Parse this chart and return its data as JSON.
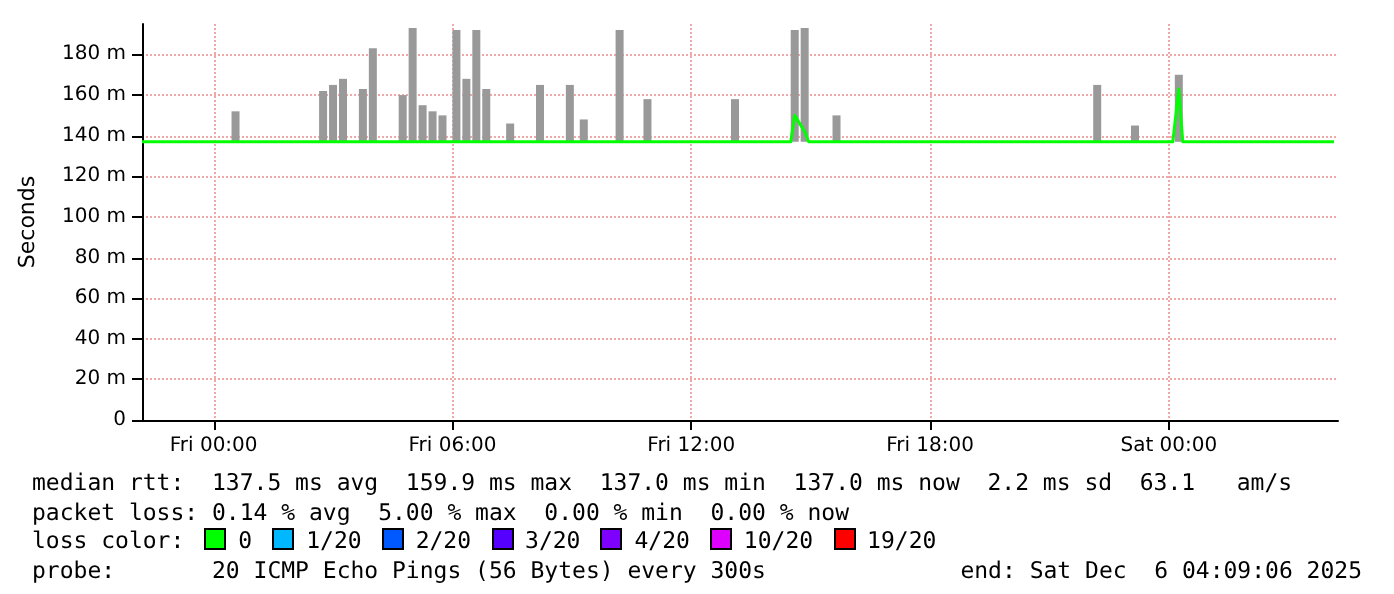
{
  "chart_data": {
    "type": "line",
    "ylabel": "Seconds",
    "xlim": [
      "2025-12-04T22:12",
      "2025-12-06T04:15"
    ],
    "xticks": [
      {
        "value": "2025-12-05T00:00",
        "label": "Fri 00:00"
      },
      {
        "value": "2025-12-05T06:00",
        "label": "Fri 06:00"
      },
      {
        "value": "2025-12-05T12:00",
        "label": "Fri 12:00"
      },
      {
        "value": "2025-12-05T18:00",
        "label": "Fri 18:00"
      },
      {
        "value": "2025-12-06T00:00",
        "label": "Sat 00:00"
      }
    ],
    "ylim": [
      0,
      195
    ],
    "yticks": [
      0,
      {
        "value": 20,
        "label": "20 m"
      },
      {
        "value": 40,
        "label": "40 m"
      },
      {
        "value": 60,
        "label": "60 m"
      },
      {
        "value": 80,
        "label": "80 m"
      },
      {
        "value": 100,
        "label": "100 m"
      },
      {
        "value": 120,
        "label": "120 m"
      },
      {
        "value": 140,
        "label": "140 m"
      },
      {
        "value": 160,
        "label": "160 m"
      },
      {
        "value": 180,
        "label": "180 m"
      }
    ],
    "grid": true,
    "marker": "none",
    "line_style": "solid",
    "series": [
      {
        "type": "bar",
        "color": "#999999",
        "x": [
          "2025-12-05T00:33",
          "2025-12-05T02:45",
          "2025-12-05T03:00",
          "2025-12-05T03:15",
          "2025-12-05T03:45",
          "2025-12-05T04:00",
          "2025-12-05T04:45",
          "2025-12-05T05:00",
          "2025-12-05T05:15",
          "2025-12-05T05:30",
          "2025-12-05T05:45",
          "2025-12-05T06:06",
          "2025-12-05T06:21",
          "2025-12-05T06:36",
          "2025-12-05T06:51",
          "2025-12-05T07:27",
          "2025-12-05T08:12",
          "2025-12-05T08:57",
          "2025-12-05T09:18",
          "2025-12-05T10:12",
          "2025-12-05T10:54",
          "2025-12-05T13:06",
          "2025-12-05T14:36",
          "2025-12-05T14:51",
          "2025-12-05T15:39",
          "2025-12-05T22:12",
          "2025-12-05T23:09",
          "2025-12-06T00:15"
        ],
        "base": [
          137,
          137,
          137,
          137,
          137,
          137,
          137,
          137,
          137,
          137,
          137,
          137,
          137,
          137,
          137,
          137,
          137,
          137,
          137,
          137,
          137,
          137,
          137,
          137,
          137,
          137,
          137,
          137
        ],
        "values": [
          15,
          25,
          28,
          31,
          26,
          46,
          23,
          56,
          18,
          15,
          13,
          55,
          31,
          55,
          26,
          9,
          28,
          28,
          11,
          55,
          21,
          21,
          55,
          56,
          13,
          28,
          8,
          33
        ]
      },
      {
        "color": "#00ff00",
        "x": [
          "2025-12-04T22:12",
          "2025-12-05T14:30",
          "2025-12-05T14:36",
          "2025-12-05T14:51",
          "2025-12-05T14:57",
          "2025-12-06T00:06",
          "2025-12-06T00:15",
          "2025-12-06T00:21",
          "2025-12-06T04:09"
        ],
        "values": [
          137,
          137,
          150,
          142,
          137,
          137,
          163,
          137,
          137
        ]
      }
    ],
    "annotations": [
      "median rtt:  137.5 ms avg  159.9 ms max  137.0 ms min  137.0 ms now  2.2 ms sd  63.1   am/s",
      "packet loss: 0.14 % avg  5.00 % max  0.00 % min  0.00 % now",
      "loss color:",
      "0",
      "1/20",
      "2/20",
      "3/20",
      "4/20",
      "10/20",
      "19/20",
      "probe:       20 ICMP Echo Pings (56 Bytes) every 300s",
      "end: Sat Dec  6 04:09:06 2025"
    ]
  }
}
